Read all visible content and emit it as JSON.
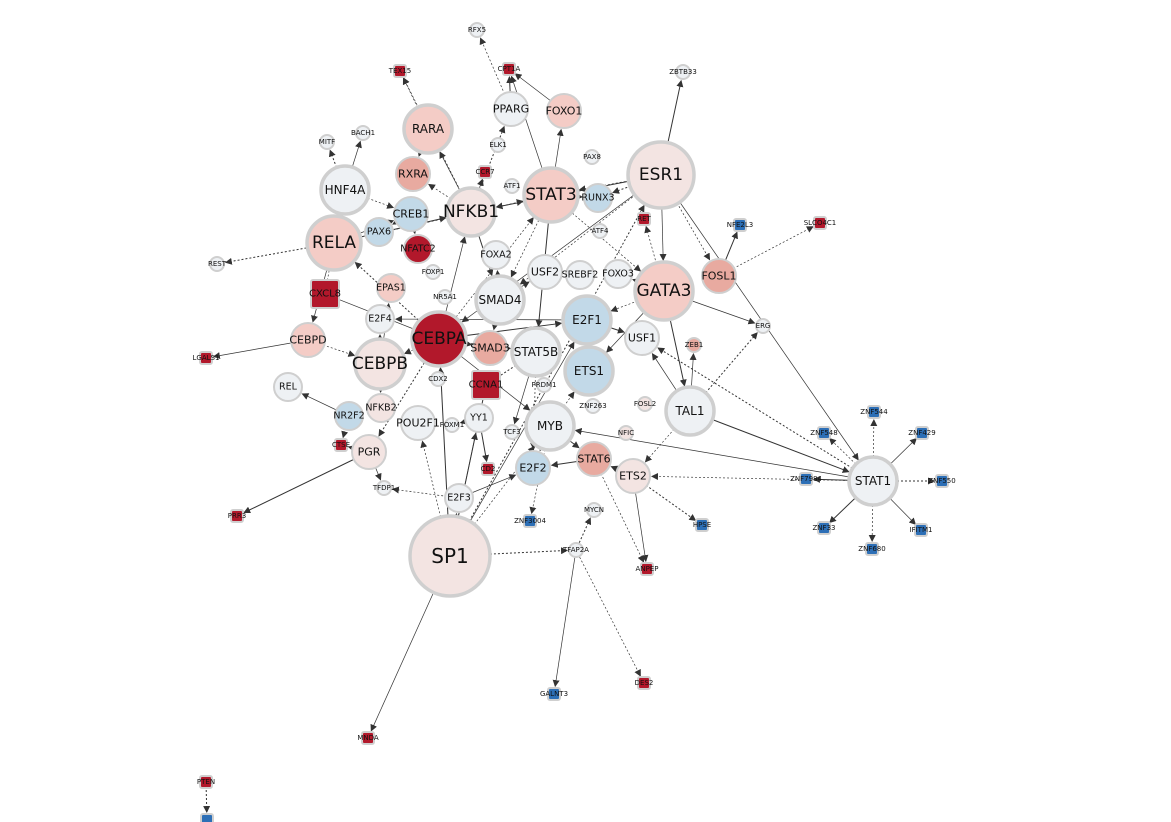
{
  "colors": {
    "strong_red": "#b2182b",
    "light_red": "#f4ccc6",
    "pale_red": "#f3e4e2",
    "salmon": "#e8aaa0",
    "neutral": "#eef1f4",
    "light_blue": "#c2d9e8",
    "strong_blue": "#2d6fb6",
    "node_border": "#cfcfcf",
    "edge": "#333333"
  },
  "network": {
    "nodes": [
      {
        "id": "SP1",
        "label": "SP1",
        "shape": "circle",
        "fill": "pale_red",
        "size": "xl"
      },
      {
        "id": "ESR1",
        "label": "ESR1",
        "shape": "circle",
        "fill": "pale_red",
        "size": "xl"
      },
      {
        "id": "CEBPA",
        "label": "CEBPA",
        "shape": "circle",
        "fill": "strong_red",
        "size": "xl"
      },
      {
        "id": "GATA3",
        "label": "GATA3",
        "shape": "circle",
        "fill": "light_red",
        "size": "xl"
      },
      {
        "id": "RELA",
        "label": "RELA",
        "shape": "circle",
        "fill": "light_red",
        "size": "xl"
      },
      {
        "id": "STAT3",
        "label": "STAT3",
        "shape": "circle",
        "fill": "light_red",
        "size": "xl"
      },
      {
        "id": "NFKB1",
        "label": "NFKB1",
        "shape": "circle",
        "fill": "pale_red",
        "size": "xl"
      },
      {
        "id": "CEBPB",
        "label": "CEBPB",
        "shape": "circle",
        "fill": "pale_red",
        "size": "xl"
      },
      {
        "id": "SMAD4",
        "label": "SMAD4",
        "shape": "circle",
        "fill": "neutral",
        "size": "lg"
      },
      {
        "id": "E2F1",
        "label": "E2F1",
        "shape": "circle",
        "fill": "light_blue",
        "size": "lg"
      },
      {
        "id": "STAT5B",
        "label": "STAT5B",
        "shape": "circle",
        "fill": "neutral",
        "size": "lg"
      },
      {
        "id": "MYB",
        "label": "MYB",
        "shape": "circle",
        "fill": "neutral",
        "size": "lg"
      },
      {
        "id": "ETS1",
        "label": "ETS1",
        "shape": "circle",
        "fill": "light_blue",
        "size": "lg"
      },
      {
        "id": "TAL1",
        "label": "TAL1",
        "shape": "circle",
        "fill": "neutral",
        "size": "lg"
      },
      {
        "id": "RARA",
        "label": "RARA",
        "shape": "circle",
        "fill": "light_red",
        "size": "lg"
      },
      {
        "id": "HNF4A",
        "label": "HNF4A",
        "shape": "circle",
        "fill": "neutral",
        "size": "lg"
      },
      {
        "id": "STAT1",
        "label": "STAT1",
        "shape": "circle",
        "fill": "neutral",
        "size": "lg"
      },
      {
        "id": "SMAD3",
        "label": "SMAD3",
        "shape": "circle",
        "fill": "salmon",
        "size": "md"
      },
      {
        "id": "RXRA",
        "label": "RXRA",
        "shape": "circle",
        "fill": "salmon",
        "size": "md"
      },
      {
        "id": "CREB1",
        "label": "CREB1",
        "shape": "circle",
        "fill": "light_blue",
        "size": "md"
      },
      {
        "id": "CEBPD",
        "label": "CEBPD",
        "shape": "circle",
        "fill": "light_red",
        "size": "md"
      },
      {
        "id": "FOXO1",
        "label": "FOXO1",
        "shape": "circle",
        "fill": "light_red",
        "size": "md"
      },
      {
        "id": "PPARG",
        "label": "PPARG",
        "shape": "circle",
        "fill": "neutral",
        "size": "md"
      },
      {
        "id": "USF2",
        "label": "USF2",
        "shape": "circle",
        "fill": "neutral",
        "size": "md"
      },
      {
        "id": "USF1",
        "label": "USF1",
        "shape": "circle",
        "fill": "neutral",
        "size": "md"
      },
      {
        "id": "STAT6",
        "label": "STAT6",
        "shape": "circle",
        "fill": "salmon",
        "size": "md"
      },
      {
        "id": "ETS2",
        "label": "ETS2",
        "shape": "circle",
        "fill": "pale_red",
        "size": "md"
      },
      {
        "id": "E2F2",
        "label": "E2F2",
        "shape": "circle",
        "fill": "light_blue",
        "size": "md"
      },
      {
        "id": "POU2F1",
        "label": "POU2F1",
        "shape": "circle",
        "fill": "neutral",
        "size": "md"
      },
      {
        "id": "PGR",
        "label": "PGR",
        "shape": "circle",
        "fill": "pale_red",
        "size": "md"
      },
      {
        "id": "FOSL1",
        "label": "FOSL1",
        "shape": "circle",
        "fill": "salmon",
        "size": "md"
      },
      {
        "id": "RUNX3",
        "label": "RUNX3",
        "shape": "circle",
        "fill": "light_blue",
        "size": "sm"
      },
      {
        "id": "FOXA2",
        "label": "FOXA2",
        "shape": "circle",
        "fill": "neutral",
        "size": "sm"
      },
      {
        "id": "FOXO3",
        "label": "FOXO3",
        "shape": "circle",
        "fill": "neutral",
        "size": "sm"
      },
      {
        "id": "SREBF2",
        "label": "SREBF2",
        "shape": "circle",
        "fill": "neutral",
        "size": "sm"
      },
      {
        "id": "E2F4",
        "label": "E2F4",
        "shape": "circle",
        "fill": "neutral",
        "size": "sm"
      },
      {
        "id": "EPAS1",
        "label": "EPAS1",
        "shape": "circle",
        "fill": "light_red",
        "size": "sm"
      },
      {
        "id": "NR2F2",
        "label": "NR2F2",
        "shape": "circle",
        "fill": "light_blue",
        "size": "sm"
      },
      {
        "id": "NFKB2",
        "label": "NFKB2",
        "shape": "circle",
        "fill": "pale_red",
        "size": "sm"
      },
      {
        "id": "YY1",
        "label": "YY1",
        "shape": "circle",
        "fill": "neutral",
        "size": "sm"
      },
      {
        "id": "E2F3",
        "label": "E2F3",
        "shape": "circle",
        "fill": "neutral",
        "size": "sm"
      },
      {
        "id": "REL",
        "label": "REL",
        "shape": "circle",
        "fill": "neutral",
        "size": "sm"
      },
      {
        "id": "PAX6",
        "label": "PAX6",
        "shape": "circle",
        "fill": "light_blue",
        "size": "sm"
      },
      {
        "id": "ERG",
        "label": "ERG",
        "shape": "circle",
        "fill": "neutral",
        "size": "xs"
      },
      {
        "id": "TFDP1",
        "label": "TFDP1",
        "shape": "circle",
        "fill": "neutral",
        "size": "xs"
      },
      {
        "id": "FOXM1",
        "label": "FOXM1",
        "shape": "circle",
        "fill": "neutral",
        "size": "xs"
      },
      {
        "id": "ATF4",
        "label": "ATF4",
        "shape": "circle",
        "fill": "neutral",
        "size": "xs"
      },
      {
        "id": "NR5A1",
        "label": "NR5A1",
        "shape": "circle",
        "fill": "neutral",
        "size": "xs"
      },
      {
        "id": "FOXP1",
        "label": "FOXP1",
        "shape": "circle",
        "fill": "neutral",
        "size": "xs"
      },
      {
        "id": "CDX2",
        "label": "CDX2",
        "shape": "circle",
        "fill": "neutral",
        "size": "xs"
      },
      {
        "id": "PRDM1",
        "label": "PRDM1",
        "shape": "circle",
        "fill": "neutral",
        "size": "xs"
      },
      {
        "id": "TCF3",
        "label": "TCF3",
        "shape": "circle",
        "fill": "neutral",
        "size": "xs"
      },
      {
        "id": "ZNF263",
        "label": "ZNF263",
        "shape": "circle",
        "fill": "neutral",
        "size": "xs"
      },
      {
        "id": "FOSL2",
        "label": "FOSL2",
        "shape": "circle",
        "fill": "pale_red",
        "size": "xs"
      },
      {
        "id": "NFIC",
        "label": "NFIC",
        "shape": "circle",
        "fill": "pale_red",
        "size": "xs"
      },
      {
        "id": "ZEB1",
        "label": "ZEB1",
        "shape": "circle",
        "fill": "salmon",
        "size": "xs"
      },
      {
        "id": "MYCN",
        "label": "MYCN",
        "shape": "circle",
        "fill": "neutral",
        "size": "xs"
      },
      {
        "id": "TFAP2A",
        "label": "TFAP2A",
        "shape": "circle",
        "fill": "neutral",
        "size": "xs"
      },
      {
        "id": "PAX8",
        "label": "PAX8",
        "shape": "circle",
        "fill": "neutral",
        "size": "xs"
      },
      {
        "id": "ELK1",
        "label": "ELK1",
        "shape": "circle",
        "fill": "neutral",
        "size": "xs"
      },
      {
        "id": "ATF1",
        "label": "ATF1",
        "shape": "circle",
        "fill": "neutral",
        "size": "xs"
      },
      {
        "id": "BACH1",
        "label": "BACH1",
        "shape": "circle",
        "fill": "neutral",
        "size": "xs"
      },
      {
        "id": "MITF",
        "label": "MITF",
        "shape": "circle",
        "fill": "neutral",
        "size": "xs"
      },
      {
        "id": "REST",
        "label": "REST",
        "shape": "circle",
        "fill": "neutral",
        "size": "xs"
      },
      {
        "id": "RFX5",
        "label": "RFX5",
        "shape": "circle",
        "fill": "neutral",
        "size": "xs"
      },
      {
        "id": "ZBTB33",
        "label": "ZBTB33",
        "shape": "circle",
        "fill": "neutral",
        "size": "xs"
      },
      {
        "id": "NFATC2",
        "label": "NFATC2",
        "shape": "circle",
        "fill": "strong_red",
        "size": "sm"
      },
      {
        "id": "CXCL8",
        "label": "CXCL8",
        "shape": "square",
        "fill": "strong_red",
        "size": "md"
      },
      {
        "id": "CCNA1",
        "label": "CCNA1",
        "shape": "square",
        "fill": "strong_red",
        "size": "md"
      },
      {
        "id": "CCR7",
        "label": "CCR7",
        "shape": "square",
        "fill": "strong_red",
        "size": "sq"
      },
      {
        "id": "RET",
        "label": "RET",
        "shape": "square",
        "fill": "strong_red",
        "size": "sq"
      },
      {
        "id": "TEX15",
        "label": "TEX15",
        "shape": "square",
        "fill": "strong_red",
        "size": "sq"
      },
      {
        "id": "CPT1A",
        "label": "CPT1A",
        "shape": "square",
        "fill": "strong_red",
        "size": "sq"
      },
      {
        "id": "CTSE",
        "label": "CTSE",
        "shape": "square",
        "fill": "strong_red",
        "size": "sq"
      },
      {
        "id": "CD2",
        "label": "CD2",
        "shape": "square",
        "fill": "strong_red",
        "size": "sq"
      },
      {
        "id": "ANPEP",
        "label": "ANPEP",
        "shape": "square",
        "fill": "strong_red",
        "size": "sq"
      },
      {
        "id": "MNDA",
        "label": "MNDA",
        "shape": "square",
        "fill": "strong_red",
        "size": "sq"
      },
      {
        "id": "PRR3",
        "label": "PRR3",
        "shape": "square",
        "fill": "strong_red",
        "size": "sq"
      },
      {
        "id": "DES2",
        "label": "DES2",
        "shape": "square",
        "fill": "strong_red",
        "size": "sq"
      },
      {
        "id": "LGALS1",
        "label": "LGALS1",
        "shape": "square",
        "fill": "strong_red",
        "size": "sq"
      },
      {
        "id": "SLCO4C1",
        "label": "SLCO4C1",
        "shape": "square",
        "fill": "strong_red",
        "size": "sq"
      },
      {
        "id": "PTEN",
        "label": "PTEN",
        "shape": "square",
        "fill": "strong_red",
        "size": "sq"
      },
      {
        "id": "NFE2L3",
        "label": "NFE2L3",
        "shape": "square",
        "fill": "strong_blue",
        "size": "sq"
      },
      {
        "id": "HPSE",
        "label": "HPSE",
        "shape": "square",
        "fill": "strong_blue",
        "size": "sq"
      },
      {
        "id": "ZNF3004",
        "label": "ZNF3004",
        "shape": "square",
        "fill": "strong_blue",
        "size": "sq"
      },
      {
        "id": "GALNT3",
        "label": "GALNT3",
        "shape": "square",
        "fill": "strong_blue",
        "size": "sq"
      },
      {
        "id": "ZNF548",
        "label": "ZNF548",
        "shape": "square",
        "fill": "strong_blue",
        "size": "sq"
      },
      {
        "id": "ZNF7984",
        "label": "ZNF7984",
        "shape": "square",
        "fill": "strong_blue",
        "size": "sq"
      },
      {
        "id": "ZNF544",
        "label": "ZNF544",
        "shape": "square",
        "fill": "strong_blue",
        "size": "sq"
      },
      {
        "id": "ZNF429",
        "label": "ZNF429",
        "shape": "square",
        "fill": "strong_blue",
        "size": "sq"
      },
      {
        "id": "ZNF550",
        "label": "ZNF550",
        "shape": "square",
        "fill": "strong_blue",
        "size": "sq"
      },
      {
        "id": "IFITM1",
        "label": "IFITM1",
        "shape": "square",
        "fill": "strong_blue",
        "size": "sq"
      },
      {
        "id": "ZNF680",
        "label": "ZNF680",
        "shape": "square",
        "fill": "strong_blue",
        "size": "sq"
      },
      {
        "id": "ZNF33",
        "label": "ZNF33",
        "shape": "square",
        "fill": "strong_blue",
        "size": "sq"
      },
      {
        "id": "PTEN_TARGET",
        "label": "",
        "shape": "square",
        "fill": "strong_blue",
        "size": "sq"
      }
    ],
    "edges": [
      [
        "SP1",
        "CEBPA"
      ],
      [
        "SP1",
        "E2F3"
      ],
      [
        "SP1",
        "MNDA"
      ],
      [
        "SP1",
        "TFAP2A"
      ],
      [
        "SP1",
        "YY1"
      ],
      [
        "SP1",
        "POU2F1"
      ],
      [
        "SP1",
        "CCNA1"
      ],
      [
        "SP1",
        "MYB"
      ],
      [
        "SP1",
        "E2F1"
      ],
      [
        "SP1",
        "ESR1"
      ],
      [
        "ESR1",
        "GATA3"
      ],
      [
        "ESR1",
        "STAT3"
      ],
      [
        "ESR1",
        "NFKB1"
      ],
      [
        "ESR1",
        "FOSL1"
      ],
      [
        "ESR1",
        "STAT1"
      ],
      [
        "ESR1",
        "RUNX3"
      ],
      [
        "ESR1",
        "CEBPA"
      ],
      [
        "ESR1",
        "SMAD4"
      ],
      [
        "ESR1",
        "ZBTB33"
      ],
      [
        "CEBPA",
        "CEBPB"
      ],
      [
        "CEBPA",
        "SMAD3"
      ],
      [
        "CEBPA",
        "RELA"
      ],
      [
        "CEBPA",
        "NFKB1"
      ],
      [
        "CEBPA",
        "STAT3"
      ],
      [
        "CEBPA",
        "E2F1"
      ],
      [
        "CEBPA",
        "STAT5B"
      ],
      [
        "CEBPA",
        "MYB"
      ],
      [
        "CEBPA",
        "PGR"
      ],
      [
        "CEBPA",
        "CXCL8"
      ],
      [
        "RELA",
        "CXCL8"
      ],
      [
        "RELA",
        "NFKB1"
      ],
      [
        "RELA",
        "HNF4A"
      ],
      [
        "RELA",
        "CEBPD"
      ],
      [
        "RELA",
        "REST"
      ],
      [
        "RELA",
        "CREB1"
      ],
      [
        "RELA",
        "STAT3"
      ],
      [
        "STAT3",
        "STAT5B"
      ],
      [
        "STAT3",
        "GATA3"
      ],
      [
        "STAT3",
        "FOXO1"
      ],
      [
        "STAT3",
        "RUNX3"
      ],
      [
        "STAT3",
        "CPT1A"
      ],
      [
        "STAT3",
        "SMAD4"
      ],
      [
        "NFKB1",
        "SMAD4"
      ],
      [
        "NFKB1",
        "RXRA"
      ],
      [
        "NFKB1",
        "RARA"
      ],
      [
        "NFKB1",
        "PPARG"
      ],
      [
        "NFKB1",
        "CCR7"
      ],
      [
        "NFKB1",
        "TEX15"
      ],
      [
        "GATA3",
        "TAL1"
      ],
      [
        "GATA3",
        "E2F1"
      ],
      [
        "GATA3",
        "ETS1"
      ],
      [
        "GATA3",
        "FOXO3"
      ],
      [
        "GATA3",
        "ERG"
      ],
      [
        "GATA3",
        "RET"
      ],
      [
        "TAL1",
        "STAT1"
      ],
      [
        "TAL1",
        "ETS2"
      ],
      [
        "TAL1",
        "USF1"
      ],
      [
        "TAL1",
        "ERG"
      ],
      [
        "TAL1",
        "ZEB1"
      ],
      [
        "STAT1",
        "ZNF548"
      ],
      [
        "STAT1",
        "ZNF7984"
      ],
      [
        "STAT1",
        "ZNF544"
      ],
      [
        "STAT1",
        "ZNF429"
      ],
      [
        "STAT1",
        "ZNF550"
      ],
      [
        "STAT1",
        "IFITM1"
      ],
      [
        "STAT1",
        "ZNF680"
      ],
      [
        "STAT1",
        "ZNF33"
      ],
      [
        "STAT1",
        "ETS2"
      ],
      [
        "STAT1",
        "MYB"
      ],
      [
        "STAT1",
        "USF1"
      ],
      [
        "MYB",
        "E2F2"
      ],
      [
        "MYB",
        "ETS1"
      ],
      [
        "MYB",
        "STAT6"
      ],
      [
        "MYB",
        "ZNF3004"
      ],
      [
        "ETS2",
        "ANPEP"
      ],
      [
        "ETS2",
        "HPSE"
      ],
      [
        "ETS2",
        "STAT6"
      ],
      [
        "STAT6",
        "ANPEP"
      ],
      [
        "STAT6",
        "E2F2"
      ],
      [
        "TFAP2A",
        "DES2"
      ],
      [
        "TFAP2A",
        "GALNT3"
      ],
      [
        "TFAP2A",
        "MYCN"
      ],
      [
        "CEBPD",
        "LGALS1"
      ],
      [
        "CEBPD",
        "CEBPB"
      ],
      [
        "PGR",
        "PRR3"
      ],
      [
        "PGR",
        "CTSE"
      ],
      [
        "PGR",
        "TFDP1"
      ],
      [
        "NR2F2",
        "CTSE"
      ],
      [
        "NR2F2",
        "REL"
      ],
      [
        "FOSL1",
        "SLCO4C1"
      ],
      [
        "FOSL1",
        "NFE2L3"
      ],
      [
        "RARA",
        "TEX15"
      ],
      [
        "RARA",
        "RXRA"
      ],
      [
        "HNF4A",
        "MITF"
      ],
      [
        "HNF4A",
        "BACH1"
      ],
      [
        "HNF4A",
        "CREB1"
      ],
      [
        "PPARG",
        "CPT1A"
      ],
      [
        "PPARG",
        "RFX5"
      ],
      [
        "FOXO1",
        "CPT1A"
      ],
      [
        "SMAD4",
        "SMAD3"
      ],
      [
        "SMAD4",
        "USF2"
      ],
      [
        "SMAD4",
        "FOXA2"
      ],
      [
        "E2F1",
        "USF1"
      ],
      [
        "E2F1",
        "ETS1"
      ],
      [
        "E2F1",
        "E2F4"
      ],
      [
        "STAT5B",
        "CCNA1"
      ],
      [
        "STAT5B",
        "TCF3"
      ],
      [
        "STAT5B",
        "E2F2"
      ],
      [
        "CEBPB",
        "NFKB2"
      ],
      [
        "CEBPB",
        "E2F4"
      ],
      [
        "CEBPB",
        "EPAS1"
      ],
      [
        "CREB1",
        "PAX6"
      ],
      [
        "CREB1",
        "NFATC2"
      ],
      [
        "YY1",
        "FOXM1"
      ],
      [
        "YY1",
        "CD2"
      ],
      [
        "E2F3",
        "TFDP1"
      ],
      [
        "E2F3",
        "E2F2"
      ],
      [
        "PTEN",
        "PTEN_TARGET"
      ]
    ]
  }
}
